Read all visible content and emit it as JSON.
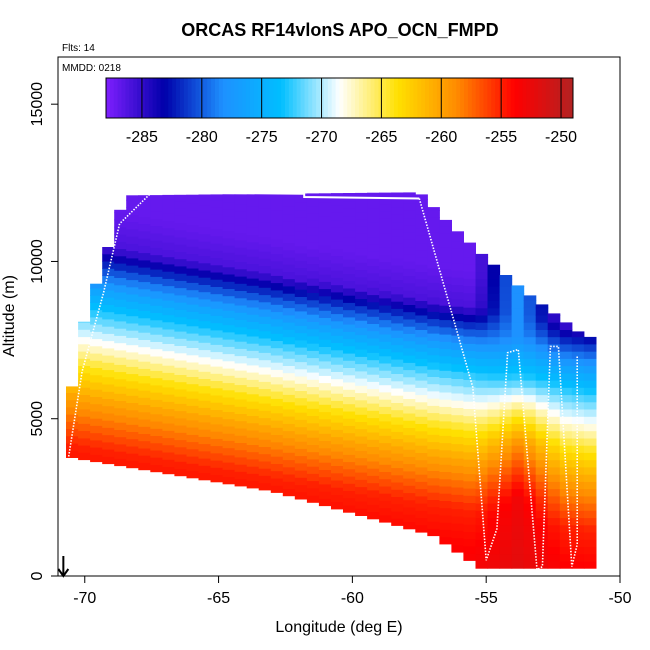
{
  "chart_data": {
    "type": "heatmap",
    "title": "ORCAS RF14vlonS APO_OCN_FMPD",
    "flights_note": "Flts: 14",
    "date_note": "MMDD: 0218",
    "xlabel": "Longitude (deg E)",
    "ylabel": "Altitude (m)",
    "xlim": [
      -71,
      -50
    ],
    "ylim": [
      0,
      16500
    ],
    "xticks": [
      -70,
      -65,
      -60,
      -55,
      -50
    ],
    "yticks": [
      0,
      5000,
      10000,
      15000
    ],
    "colorbar": {
      "range": [
        -288,
        -249
      ],
      "ticks": [
        -285,
        -280,
        -275,
        -270,
        -265,
        -260,
        -255,
        -250
      ],
      "colors": [
        "#7f1fff",
        "#0000aa",
        "#1e90ff",
        "#00bfff",
        "#ffffff",
        "#ffe000",
        "#ff8c00",
        "#ff0000",
        "#b22222"
      ],
      "placement": "top"
    },
    "field_summary": {
      "main_block_lon_range": [
        -70.7,
        -51.3
      ],
      "near_surface_value": -255,
      "upper_value": -287
    },
    "flight_track_color": "#ffffff",
    "marker": {
      "longitude": -70.8,
      "altitude": 0,
      "symbol": "down-arrow"
    }
  }
}
